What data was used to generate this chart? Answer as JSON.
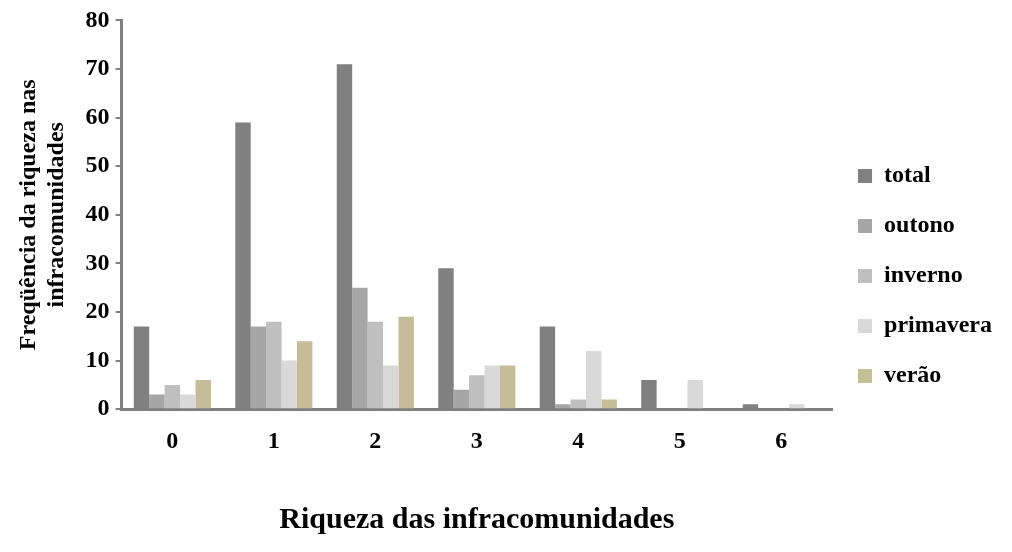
{
  "chart_data": {
    "type": "bar",
    "xlabel": "Riqueza das infracomunidades",
    "ylabel": "Freqüência da riqueza nas infracomunidades",
    "categories": [
      "0",
      "1",
      "2",
      "3",
      "4",
      "5",
      "6"
    ],
    "series": [
      {
        "name": "total",
        "color": "#808080",
        "values": [
          17,
          59,
          71,
          29,
          17,
          6,
          1
        ]
      },
      {
        "name": "outono",
        "color": "#a6a6a6",
        "values": [
          3,
          17,
          25,
          4,
          1,
          0,
          0
        ]
      },
      {
        "name": "inverno",
        "color": "#bfbfbf",
        "values": [
          5,
          18,
          18,
          7,
          2,
          0,
          0
        ]
      },
      {
        "name": "primavera",
        "color": "#d9d9d9",
        "values": [
          3,
          10,
          9,
          9,
          12,
          6,
          1
        ]
      },
      {
        "name": "verão",
        "color": "#c4bd97",
        "values": [
          6,
          14,
          19,
          9,
          2,
          0,
          0
        ]
      }
    ],
    "ylim": [
      0,
      80
    ],
    "yticks": [
      0,
      10,
      20,
      30,
      40,
      50,
      60,
      70,
      80
    ],
    "grid": false,
    "legend": "right"
  }
}
